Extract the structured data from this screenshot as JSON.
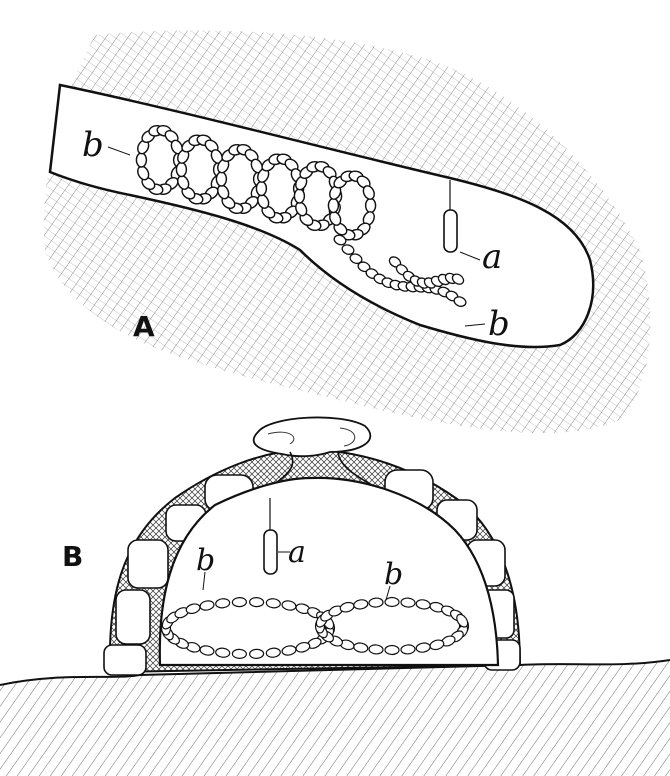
{
  "figure": {
    "panel_a": {
      "label": "A",
      "callouts": {
        "b_left": "b",
        "a": "a",
        "b_right": "b"
      }
    },
    "panel_b": {
      "label": "B",
      "callouts": {
        "a": "a",
        "b_left": "b",
        "b_right": "b"
      }
    },
    "colors": {
      "ink": "#111111",
      "paper": "#ffffff",
      "shade": "#555555"
    }
  }
}
